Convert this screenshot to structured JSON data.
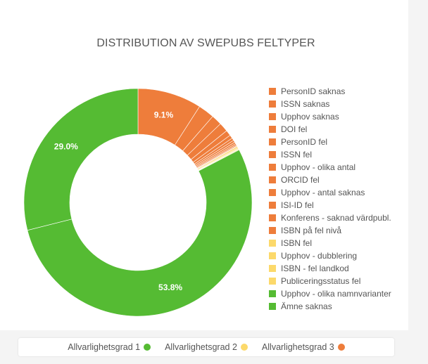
{
  "chart_data": {
    "type": "pie",
    "title": "DISTRIBUTION AV SWEPUBS FELTYPER",
    "slices": [
      {
        "label": "PersonID saknas",
        "value": 9.1,
        "color": "#ee7d3b",
        "data_label": "9.1%"
      },
      {
        "label": "ISSN saknas",
        "value": 2.3,
        "color": "#ee7d3b"
      },
      {
        "label": "Upphov saknas",
        "value": 1.5,
        "color": "#ee7d3b"
      },
      {
        "label": "DOI fel",
        "value": 1.3,
        "color": "#ee7d3b"
      },
      {
        "label": "PersonID fel",
        "value": 0.8,
        "color": "#ee7d3b"
      },
      {
        "label": "ISSN fel",
        "value": 0.5,
        "color": "#ee7d3b"
      },
      {
        "label": "Upphov - olika antal",
        "value": 0.35,
        "color": "#ee7d3b"
      },
      {
        "label": "ORCID fel",
        "value": 0.3,
        "color": "#ee7d3b"
      },
      {
        "label": "Upphov - antal saknas",
        "value": 0.25,
        "color": "#ee7d3b"
      },
      {
        "label": "ISI-ID fel",
        "value": 0.2,
        "color": "#ee7d3b"
      },
      {
        "label": "Konferens - saknad värdpubl.",
        "value": 0.15,
        "color": "#ee7d3b"
      },
      {
        "label": "ISBN på fel nivå",
        "value": 0.1,
        "color": "#ee7d3b"
      },
      {
        "label": "ISBN fel",
        "value": 0.2,
        "color": "#fcd96b"
      },
      {
        "label": "Upphov - dubblering",
        "value": 0.15,
        "color": "#fcd96b"
      },
      {
        "label": "ISBN - fel landkod",
        "value": 0.1,
        "color": "#fcd96b"
      },
      {
        "label": "Publiceringsstatus fel",
        "value": 0.1,
        "color": "#fcd96b"
      },
      {
        "label": "Upphov - olika namnvarianter",
        "value": 53.8,
        "color": "#55bb33",
        "data_label": "53.8%"
      },
      {
        "label": "Ämne saknas",
        "value": 29.0,
        "color": "#55bb33",
        "data_label": "29.0%"
      }
    ]
  },
  "severity_legend": [
    {
      "label": "Allvarlighetsgrad 1",
      "color": "#55bb33"
    },
    {
      "label": "Allvarlighetsgrad 2",
      "color": "#fcd96b"
    },
    {
      "label": "Allvarlighetsgrad 3",
      "color": "#ee7d3b"
    }
  ]
}
